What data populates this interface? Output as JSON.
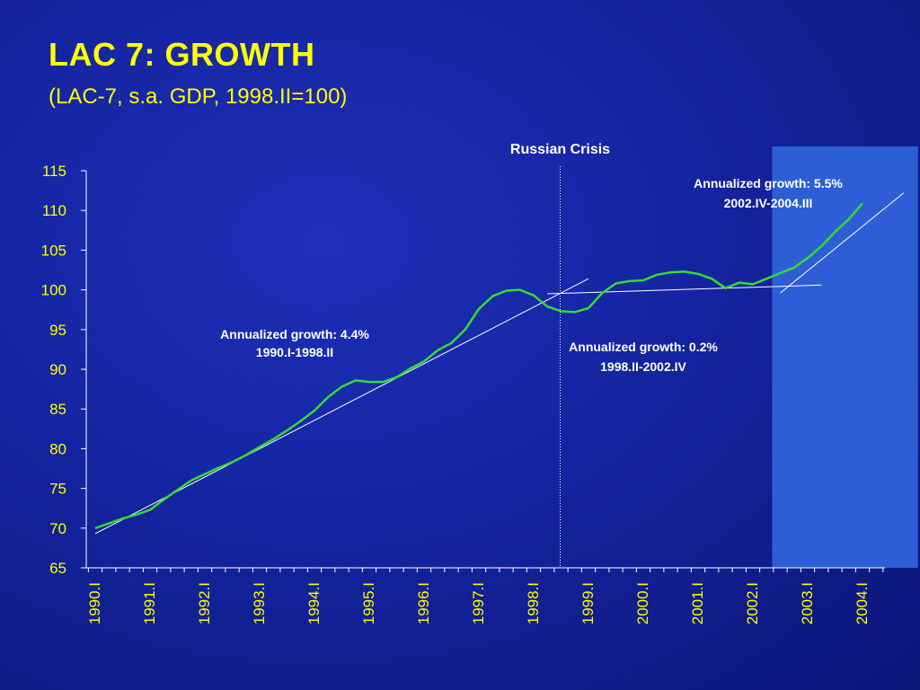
{
  "slide": {
    "title": "LAC 7: GROWTH",
    "subtitle": "(LAC-7, s.a. GDP, 1998.II=100)"
  },
  "colors": {
    "background": "#1424a0",
    "text_accent": "#ffff00",
    "series_line": "#33dd33",
    "trend_line": "#ffffff",
    "highlight_band": "#2d5ed6"
  },
  "chart_data": {
    "type": "line",
    "title": "",
    "xlabel": "",
    "ylabel": "",
    "ylim": [
      65,
      115
    ],
    "yticks": [
      65,
      70,
      75,
      80,
      85,
      90,
      95,
      100,
      105,
      110,
      115
    ],
    "x_period_labels": [
      "1990.I",
      "1991.I",
      "1992.I",
      "1993.I",
      "1994.I",
      "1995.I",
      "1996.I",
      "1997.I",
      "1998.I",
      "1999.I",
      "2000.I",
      "2001.I",
      "2002.I",
      "2003.I",
      "2004.I"
    ],
    "grid": false,
    "legend": "none",
    "series": [
      {
        "values": [
          70.0,
          70.6,
          71.2,
          71.7,
          72.3,
          73.6,
          74.8,
          76.0,
          76.8,
          77.6,
          78.3,
          79.2,
          80.2,
          81.2,
          82.3,
          83.5,
          84.8,
          86.5,
          87.8,
          88.6,
          88.4,
          88.4,
          89.0,
          90.1,
          91.0,
          92.4,
          93.3,
          95.0,
          97.6,
          99.2,
          99.9,
          100.0,
          99.3,
          97.9,
          97.3,
          97.2,
          97.7,
          99.6,
          100.8,
          101.1,
          101.2,
          101.9,
          102.2,
          102.3,
          102.0,
          101.4,
          100.2,
          100.9,
          100.7,
          101.4,
          102.1,
          102.8,
          104.0,
          105.5,
          107.3,
          108.9,
          110.9
        ]
      }
    ],
    "trend_lines": [
      {
        "label": "Annualized  growth: 4.4%",
        "period": "1990.I-1998.II",
        "from": {
          "x": "1990.I",
          "y": 69.3
        },
        "to": {
          "x": "1999.I",
          "y": 101.4
        }
      },
      {
        "label": "Annualized  growth: 0.2%",
        "period": "1998.II-2002.IV",
        "from": {
          "x": "1998.II",
          "y": 99.5
        },
        "to": {
          "x": "2003.II",
          "y": 100.6
        }
      },
      {
        "label": "Annualized  growth: 5.5%",
        "period": "2002.IV-2004.III",
        "from": {
          "x": "2002.III",
          "y": 99.6
        },
        "to": {
          "x": "2004.IV",
          "y": 112.2
        }
      }
    ],
    "event_line": {
      "label": "Russian Crisis",
      "x": "1998.III"
    },
    "highlight_range": {
      "from": "2002.III",
      "to": "2004.IV"
    }
  }
}
